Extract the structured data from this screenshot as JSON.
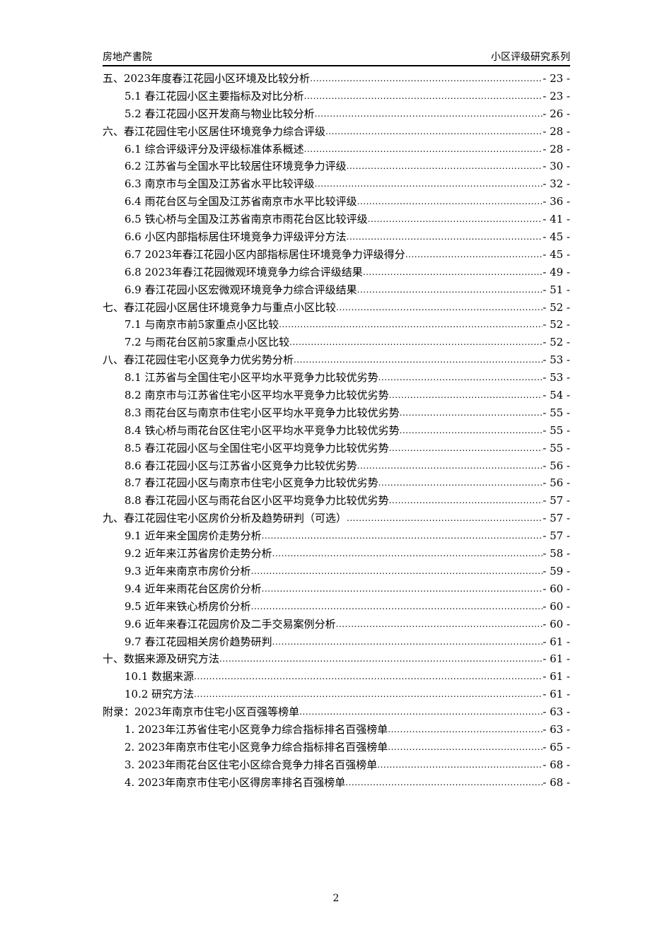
{
  "header": {
    "left": "房地产書院",
    "right": "小区评级研究系列"
  },
  "toc": [
    {
      "level": 1,
      "title": "五、2023年度春江花园小区环境及比较分析",
      "page": "- 23 -"
    },
    {
      "level": 2,
      "title": "5.1 春江花园小区主要指标及对比分析",
      "page": "- 23 -"
    },
    {
      "level": 2,
      "title": "5.2 春江花园小区开发商与物业比较分析",
      "page": "- 26 -"
    },
    {
      "level": 1,
      "title": "六、春江花园住宅小区居住环境竞争力综合评级",
      "page": "- 28 -"
    },
    {
      "level": 2,
      "title": "6.1 综合评级评分及评级标准体系概述",
      "page": "- 28 -"
    },
    {
      "level": 2,
      "title": "6.2 江苏省与全国水平比较居住环境竞争力评级",
      "page": "- 30 -"
    },
    {
      "level": 2,
      "title": "6.3 南京市与全国及江苏省水平比较评级",
      "page": "- 32 -"
    },
    {
      "level": 2,
      "title": "6.4 雨花台区与全国及江苏省南京市水平比较评级",
      "page": "- 36 -"
    },
    {
      "level": 2,
      "title": "6.5 铁心桥与全国及江苏省南京市雨花台区比较评级",
      "page": "- 41 -"
    },
    {
      "level": 2,
      "title": "6.6 小区内部指标居住环境竞争力评级评分方法",
      "page": "- 45 -"
    },
    {
      "level": 2,
      "title": "6.7 2023年春江花园小区内部指标居住环境竞争力评级得分",
      "page": "- 45 -"
    },
    {
      "level": 2,
      "title": "6.8 2023年春江花园微观环境竞争力综合评级结果",
      "page": "- 49 -"
    },
    {
      "level": 2,
      "title": "6.9 春江花园小区宏微观环境竞争力综合评级结果",
      "page": "- 51 -"
    },
    {
      "level": 1,
      "title": "七、春江花园小区居住环境竞争力与重点小区比较",
      "page": "- 52 -"
    },
    {
      "level": 2,
      "title": "7.1 与南京市前5家重点小区比较",
      "page": "- 52 -"
    },
    {
      "level": 2,
      "title": "7.2 与雨花台区前5家重点小区比较",
      "page": "- 52 -"
    },
    {
      "level": 1,
      "title": "八、春江花园住宅小区竞争力优劣势分析",
      "page": "- 53 -"
    },
    {
      "level": 2,
      "title": "8.1 江苏省与全国住宅小区平均水平竞争力比较优劣势",
      "page": "- 53 -"
    },
    {
      "level": 2,
      "title": "8.2 南京市与江苏省住宅小区平均水平竞争力比较优劣势",
      "page": "- 54 -"
    },
    {
      "level": 2,
      "title": "8.3 雨花台区与南京市住宅小区平均水平竞争力比较优劣势",
      "page": "- 55 -"
    },
    {
      "level": 2,
      "title": "8.4 铁心桥与雨花台区住宅小区平均水平竞争力比较优劣势",
      "page": "- 55 -"
    },
    {
      "level": 2,
      "title": "8.5 春江花园小区与全国住宅小区平均竞争力比较优劣势",
      "page": "- 55 -"
    },
    {
      "level": 2,
      "title": "8.6 春江花园小区与江苏省小区竞争力比较优劣势",
      "page": "- 56 -"
    },
    {
      "level": 2,
      "title": "8.7 春江花园小区与南京市住宅小区竞争力比较优劣势",
      "page": "- 56 -"
    },
    {
      "level": 2,
      "title": "8.8 春江花园小区与雨花台区小区平均竞争力比较优劣势",
      "page": "- 57 -"
    },
    {
      "level": 1,
      "title": "九、春江花园住宅小区房价分析及趋势研判（可选）",
      "page": "- 57 -"
    },
    {
      "level": 2,
      "title": "9.1 近年来全国房价走势分析",
      "page": "- 57 -"
    },
    {
      "level": 2,
      "title": "9.2 近年来江苏省房价走势分析",
      "page": "- 58 -"
    },
    {
      "level": 2,
      "title": "9.3 近年来南京市房价分析",
      "page": "- 59 -"
    },
    {
      "level": 2,
      "title": "9.4 近年来雨花台区房价分析",
      "page": "- 60 -"
    },
    {
      "level": 2,
      "title": "9.5 近年来铁心桥房价分析",
      "page": "- 60 -"
    },
    {
      "level": 2,
      "title": "9.6 近年来春江花园房价及二手交易案例分析",
      "page": "- 60 -"
    },
    {
      "level": 2,
      "title": "9.7 春江花园相关房价趋势研判",
      "page": "- 61 -"
    },
    {
      "level": 1,
      "title": "十、数据来源及研究方法",
      "page": "- 61 -"
    },
    {
      "level": 2,
      "title": "10.1 数据来源",
      "page": "- 61 -"
    },
    {
      "level": 2,
      "title": "10.2 研究方法",
      "page": "- 61 -"
    },
    {
      "level": 1,
      "title": "附录：2023年南京市住宅小区百强等榜单",
      "page": "- 63 -"
    },
    {
      "level": 2,
      "title": "1. 2023年江苏省住宅小区竞争力综合指标排名百强榜单",
      "page": "- 63 -"
    },
    {
      "level": 2,
      "title": "2. 2023年南京市住宅小区竞争力综合指标排名百强榜单",
      "page": "- 65 -"
    },
    {
      "level": 2,
      "title": "3. 2023年雨花台区住宅小区综合竞争力排名百强榜单",
      "page": "- 68 -"
    },
    {
      "level": 2,
      "title": "4. 2023年南京市住宅小区得房率排名百强榜单",
      "page": "- 68 -"
    }
  ],
  "footer": {
    "page_number": "2"
  }
}
